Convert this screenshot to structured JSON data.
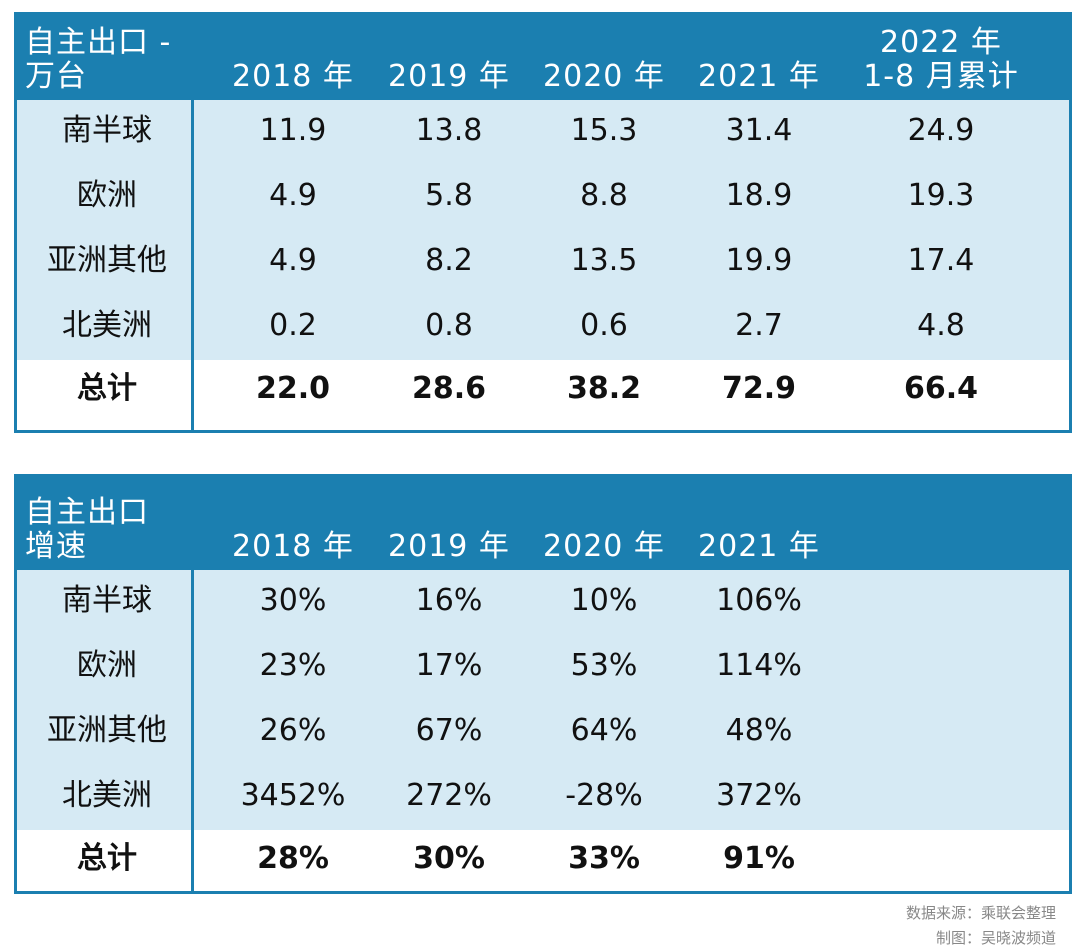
{
  "tables": [
    {
      "header": [
        [
          "自主出口 -",
          "万台"
        ],
        [
          "2018 年"
        ],
        [
          "2019 年"
        ],
        [
          "2020 年"
        ],
        [
          "2021 年"
        ],
        [
          "2022 年",
          "1-8 月累计"
        ]
      ],
      "rows": [
        [
          "南半球",
          "11.9",
          "13.8",
          "15.3",
          "31.4",
          "24.9"
        ],
        [
          "欧洲",
          "4.9",
          "5.8",
          "8.8",
          "18.9",
          "19.3"
        ],
        [
          "亚洲其他",
          "4.9",
          "8.2",
          "13.5",
          "19.9",
          "17.4"
        ],
        [
          "北美洲",
          "0.2",
          "0.8",
          "0.6",
          "2.7",
          "4.8"
        ]
      ],
      "total": [
        "总计",
        "22.0",
        "28.6",
        "38.2",
        "72.9",
        "66.4"
      ]
    },
    {
      "header": [
        [
          "自主出口",
          "增速"
        ],
        [
          "2018 年"
        ],
        [
          "2019 年"
        ],
        [
          "2020 年"
        ],
        [
          "2021 年"
        ]
      ],
      "rows": [
        [
          "南半球",
          "30%",
          "16%",
          "10%",
          "106%"
        ],
        [
          "欧洲",
          "23%",
          "17%",
          "53%",
          "114%"
        ],
        [
          "亚洲其他",
          "26%",
          "67%",
          "64%",
          "48%"
        ],
        [
          "北美洲",
          "3452%",
          "272%",
          "-28%",
          "372%"
        ]
      ],
      "total": [
        "总计",
        "28%",
        "30%",
        "33%",
        "91%"
      ]
    }
  ],
  "footer": [
    "数据来源：乘联会整理",
    "制图：吴晓波频道"
  ]
}
